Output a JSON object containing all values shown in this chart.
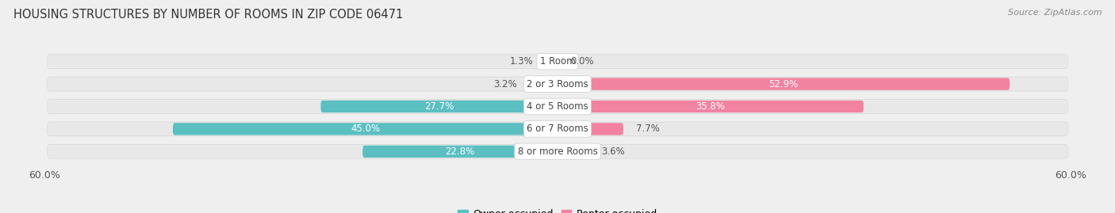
{
  "title": "HOUSING STRUCTURES BY NUMBER OF ROOMS IN ZIP CODE 06471",
  "source": "Source: ZipAtlas.com",
  "categories": [
    "1 Room",
    "2 or 3 Rooms",
    "4 or 5 Rooms",
    "6 or 7 Rooms",
    "8 or more Rooms"
  ],
  "owner_values": [
    1.3,
    3.2,
    27.7,
    45.0,
    22.8
  ],
  "renter_values": [
    0.0,
    52.9,
    35.8,
    7.7,
    3.6
  ],
  "owner_color": "#5bbfc2",
  "renter_color": "#f283a0",
  "axis_max": 60.0,
  "x_tick_label_left": "60.0%",
  "x_tick_label_right": "60.0%",
  "bar_height": 0.62,
  "row_bg_color": "#e8e8e8",
  "bar_bg_color": "#f5f5f5",
  "title_fontsize": 10.5,
  "source_fontsize": 8,
  "tick_fontsize": 9,
  "bar_label_fontsize": 8.5,
  "legend_fontsize": 9,
  "cat_label_fontsize": 8.5,
  "fig_bg_color": "#efefef"
}
